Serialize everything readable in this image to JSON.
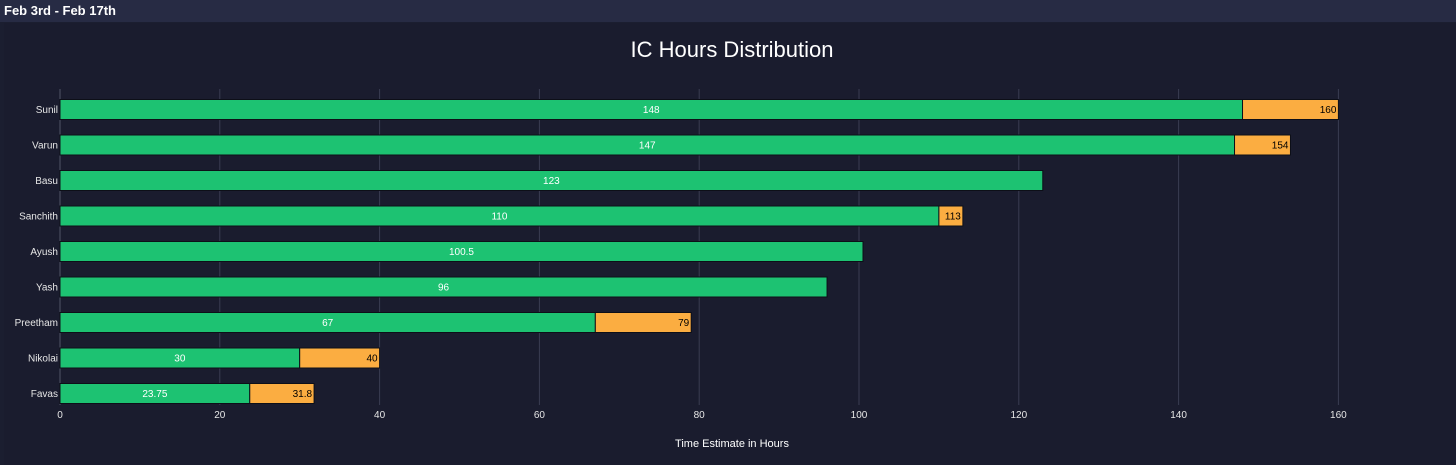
{
  "header": {
    "title": "Feb 3rd - Feb 17th"
  },
  "chart_data": {
    "type": "bar",
    "orientation": "horizontal",
    "barmode": "stacked",
    "title": "IC Hours Distribution",
    "xlabel": "Time Estimate in Hours",
    "ylabel": "",
    "xlim": [
      0,
      175
    ],
    "xticks": [
      0,
      20,
      40,
      60,
      80,
      100,
      120,
      140,
      160
    ],
    "grid": true,
    "categories": [
      "Sunil",
      "Varun",
      "Basu",
      "Sanchith",
      "Ayush",
      "Yash",
      "Preetham",
      "Nikolai",
      "Favas"
    ],
    "series": [
      {
        "color": "#1dc272",
        "label_color": "#ffffff",
        "values": [
          148,
          147,
          123,
          110,
          100.5,
          96,
          67,
          30,
          23.75
        ],
        "labels": [
          "148",
          "147",
          "123",
          "110",
          "100.5",
          "96",
          "67",
          "30",
          "23.75"
        ]
      },
      {
        "color": "#fbad41",
        "label_color": "#000000",
        "values": [
          12,
          7,
          0,
          3,
          0,
          0,
          12,
          10,
          8.05
        ],
        "labels": [
          "160",
          "154",
          "",
          "113",
          "",
          "",
          "79",
          "40",
          "31.8"
        ]
      }
    ]
  }
}
